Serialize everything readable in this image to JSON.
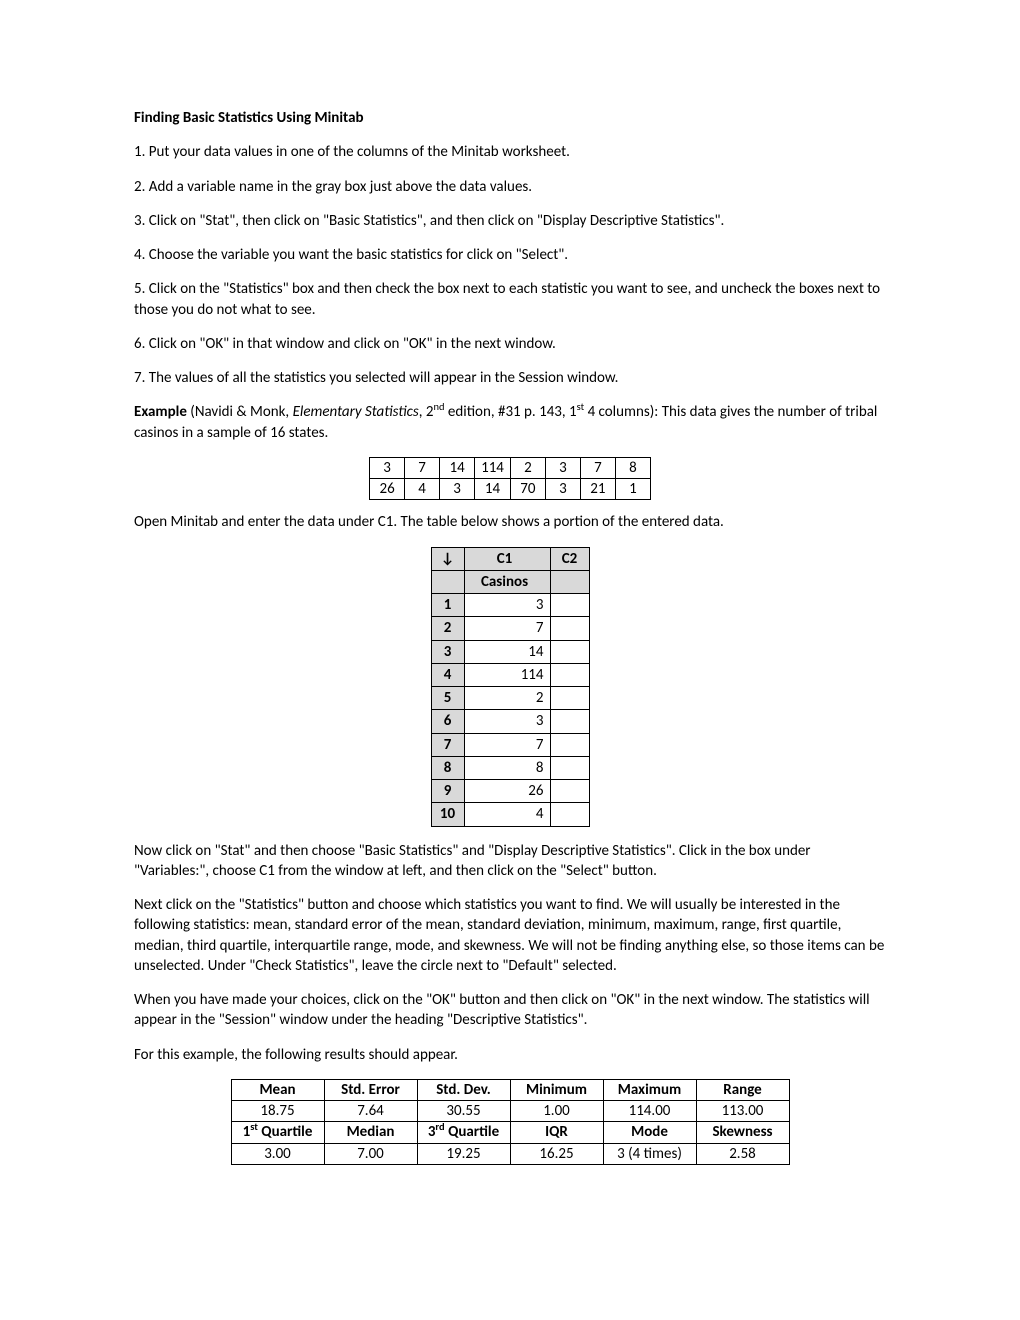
{
  "heading": "Finding Basic Statistics Using Minitab",
  "steps": {
    "s1": "1. Put your data values in one of the columns of the Minitab worksheet.",
    "s2": "2. Add a variable name in the gray box just above the data values.",
    "s3": "3. Click on \"Stat\", then click on \"Basic Statistics\", and then click on \"Display Descriptive Statistics\".",
    "s4": "4. Choose the variable you want the basic statistics for click on \"Select\".",
    "s5": "5. Click on the \"Statistics\" box and then check the box next to each statistic you want to see, and uncheck the boxes next to those you do not what to see.",
    "s6": "6. Click on \"OK\" in that window and click on \"OK\" in the next window.",
    "s7": "7. The values of all the statistics you selected will appear in the Session window."
  },
  "example": {
    "lead": "Example",
    "cite_pre": " (Navidi & Monk, ",
    "cite_title": "Elementary Statistics",
    "cite_post": ", 2",
    "nd": "nd",
    "cite_mid": " edition, #31 p. 143, 1",
    "st": "st",
    "cite_tail": " 4 columns): This data gives the number of tribal casinos in a sample of 16 states."
  },
  "data_table": {
    "r1": [
      "3",
      "7",
      "14",
      "114",
      "2",
      "3",
      "7",
      "8"
    ],
    "r2": [
      "26",
      "4",
      "3",
      "14",
      "70",
      "3",
      "21",
      "1"
    ]
  },
  "open_line": "Open Minitab and enter the data under C1.  The table below shows a portion of the entered data.",
  "worksheet": {
    "arrow": "↓",
    "c1": "C1",
    "c2": "C2",
    "varname": "Casinos",
    "rows": [
      {
        "i": "1",
        "v": "3"
      },
      {
        "i": "2",
        "v": "7"
      },
      {
        "i": "3",
        "v": "14"
      },
      {
        "i": "4",
        "v": "114"
      },
      {
        "i": "5",
        "v": "2"
      },
      {
        "i": "6",
        "v": "3"
      },
      {
        "i": "7",
        "v": "7"
      },
      {
        "i": "8",
        "v": "8"
      },
      {
        "i": "9",
        "v": "26"
      },
      {
        "i": "10",
        "v": "4"
      }
    ]
  },
  "p_stat": "Now click on \"Stat\" and then choose \"Basic Statistics\" and \"Display Descriptive Statistics\".  Click in the box under \"Variables:\", choose C1 from the window at left, and then click on the \"Select\" button.",
  "p_next": "Next click on the \"Statistics\" button and choose which statistics you want to find.  We will usually be interested in the following statistics: mean, standard error of the mean, standard deviation, minimum, maximum, range, first quartile, median, third quartile, interquartile range, mode, and skewness.  We will not be finding anything else, so those items can be unselected.  Under \"Check Statistics\", leave the circle next to \"Default\" selected.",
  "p_ok": "When you have made your choices, click on the \"OK\" button and then click on \"OK\" in the next window.  The statistics will appear in the \"Session\" window under the heading \"Descriptive Statistics\".",
  "p_for": "For this example, the following results should appear.",
  "results": {
    "h1": [
      "Mean",
      "Std. Error",
      "Std. Dev.",
      "Minimum",
      "Maximum",
      "Range"
    ],
    "r1": [
      "18.75",
      "7.64",
      "30.55",
      "1.00",
      "114.00",
      "113.00"
    ],
    "h2_q1_pre": "1",
    "h2_q1_sup": "st",
    "h2_q1_post": " Quartile",
    "h2_med": "Median",
    "h2_q3_pre": "3",
    "h2_q3_sup": "rd",
    "h2_q3_post": " Quartile",
    "h2_iqr": "IQR",
    "h2_mode": "Mode",
    "h2_skew": "Skewness",
    "r2": [
      "3.00",
      "7.00",
      "19.25",
      "16.25",
      "3 (4 times)",
      "2.58"
    ]
  }
}
